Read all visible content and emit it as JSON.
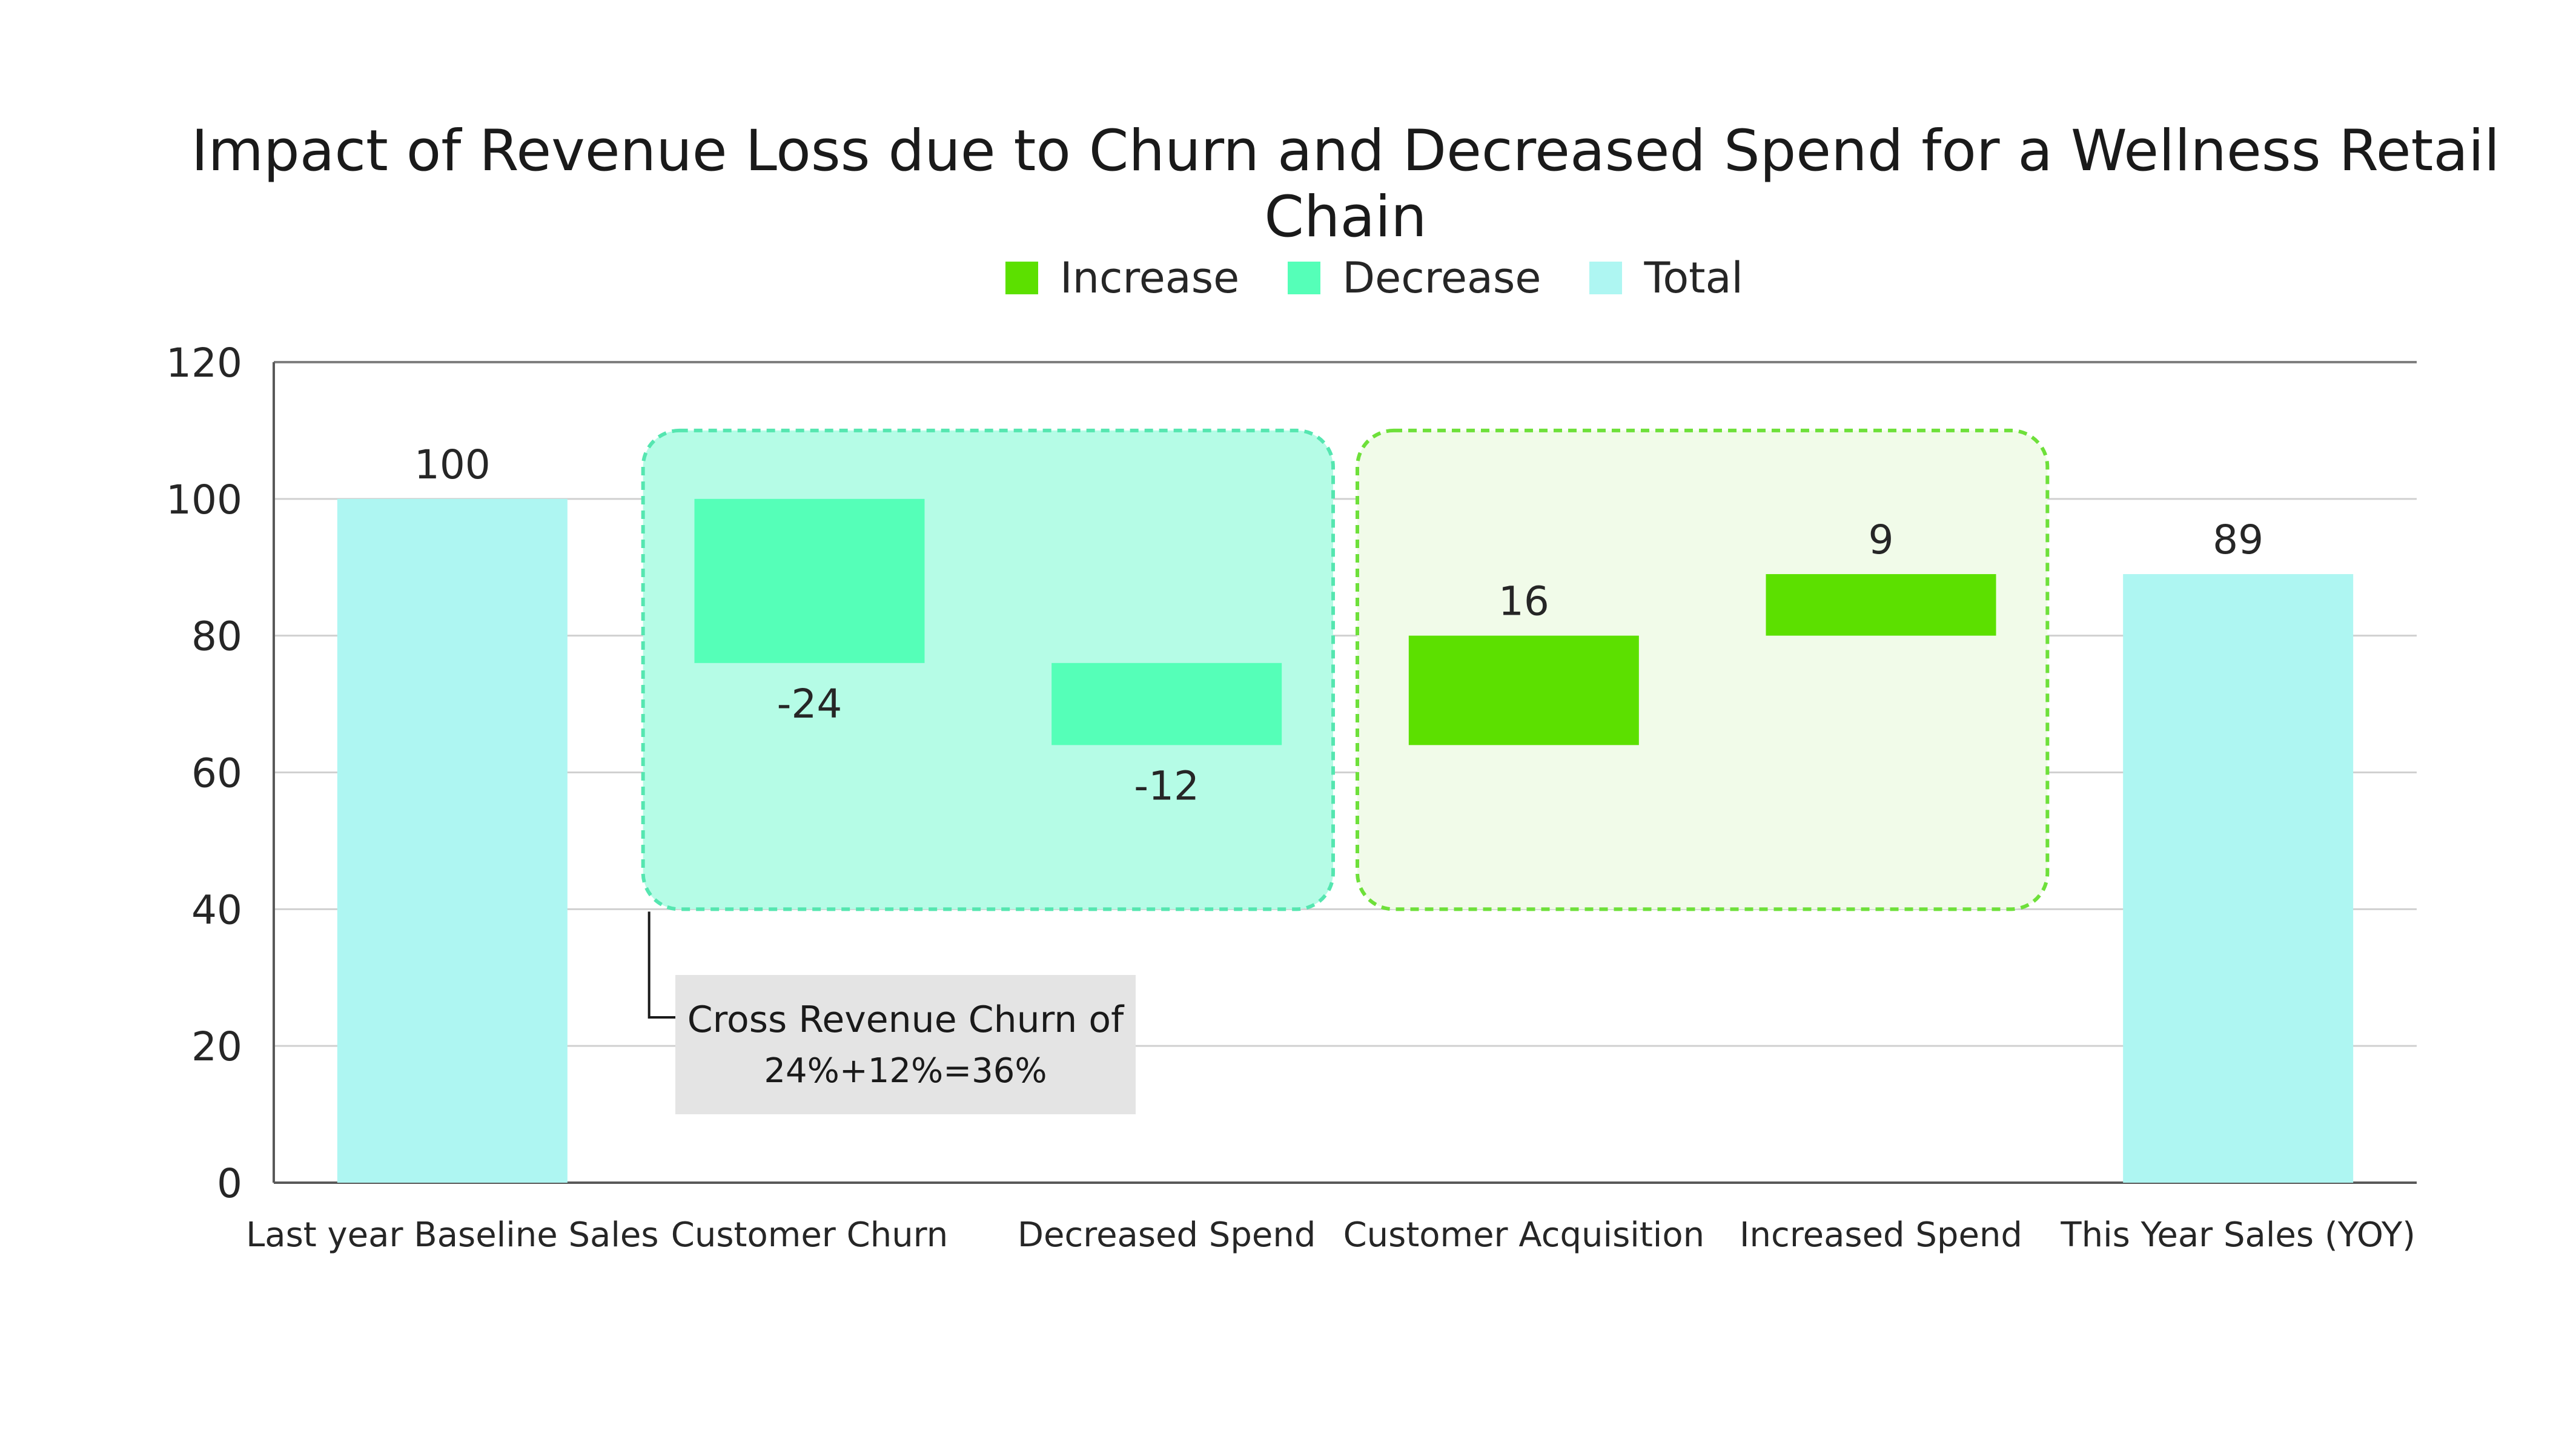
{
  "chart_data": {
    "type": "waterfall",
    "title": "Impact of Revenue Loss due to Churn and Decreased Spend for a Wellness Retail Chain",
    "categories": [
      "Last year Baseline Sales",
      "Customer Churn",
      "Decreased Spend",
      "Customer Acquisition",
      "Increased Spend",
      "This Year Sales (YOY)"
    ],
    "steps": [
      {
        "category": "Last year Baseline Sales",
        "kind": "total",
        "start": 0,
        "end": 100,
        "label": "100"
      },
      {
        "category": "Customer Churn",
        "kind": "decrease",
        "start": 100,
        "end": 76,
        "label": "-24"
      },
      {
        "category": "Decreased Spend",
        "kind": "decrease",
        "start": 76,
        "end": 64,
        "label": "-12"
      },
      {
        "category": "Customer Acquisition",
        "kind": "increase",
        "start": 64,
        "end": 80,
        "label": "16"
      },
      {
        "category": "Increased Spend",
        "kind": "increase",
        "start": 80,
        "end": 89,
        "label": "9"
      },
      {
        "category": "This Year Sales (YOY)",
        "kind": "total",
        "start": 0,
        "end": 89,
        "label": "89"
      }
    ],
    "legend": [
      {
        "name": "Increase",
        "color": "#5ce000"
      },
      {
        "name": "Decrease",
        "color": "#55ffb8"
      },
      {
        "name": "Total",
        "color": "#aef6f2"
      }
    ],
    "legend_position": "top",
    "ylim": [
      0,
      120
    ],
    "yticks": [
      "0",
      "20",
      "40",
      "60",
      "80",
      "100",
      "120"
    ],
    "grid": true,
    "groups": [
      {
        "name": "decrease-group",
        "from_category": 1,
        "to_category": 2,
        "fill": "#b5fce6",
        "stroke": "#55e6b0"
      },
      {
        "name": "increase-group",
        "from_category": 3,
        "to_category": 4,
        "fill": "#f1fbe9",
        "stroke": "#6ee03a"
      }
    ],
    "annotation": {
      "line1": "Cross Revenue Churn of",
      "line2": "24%+12%=36%"
    }
  }
}
